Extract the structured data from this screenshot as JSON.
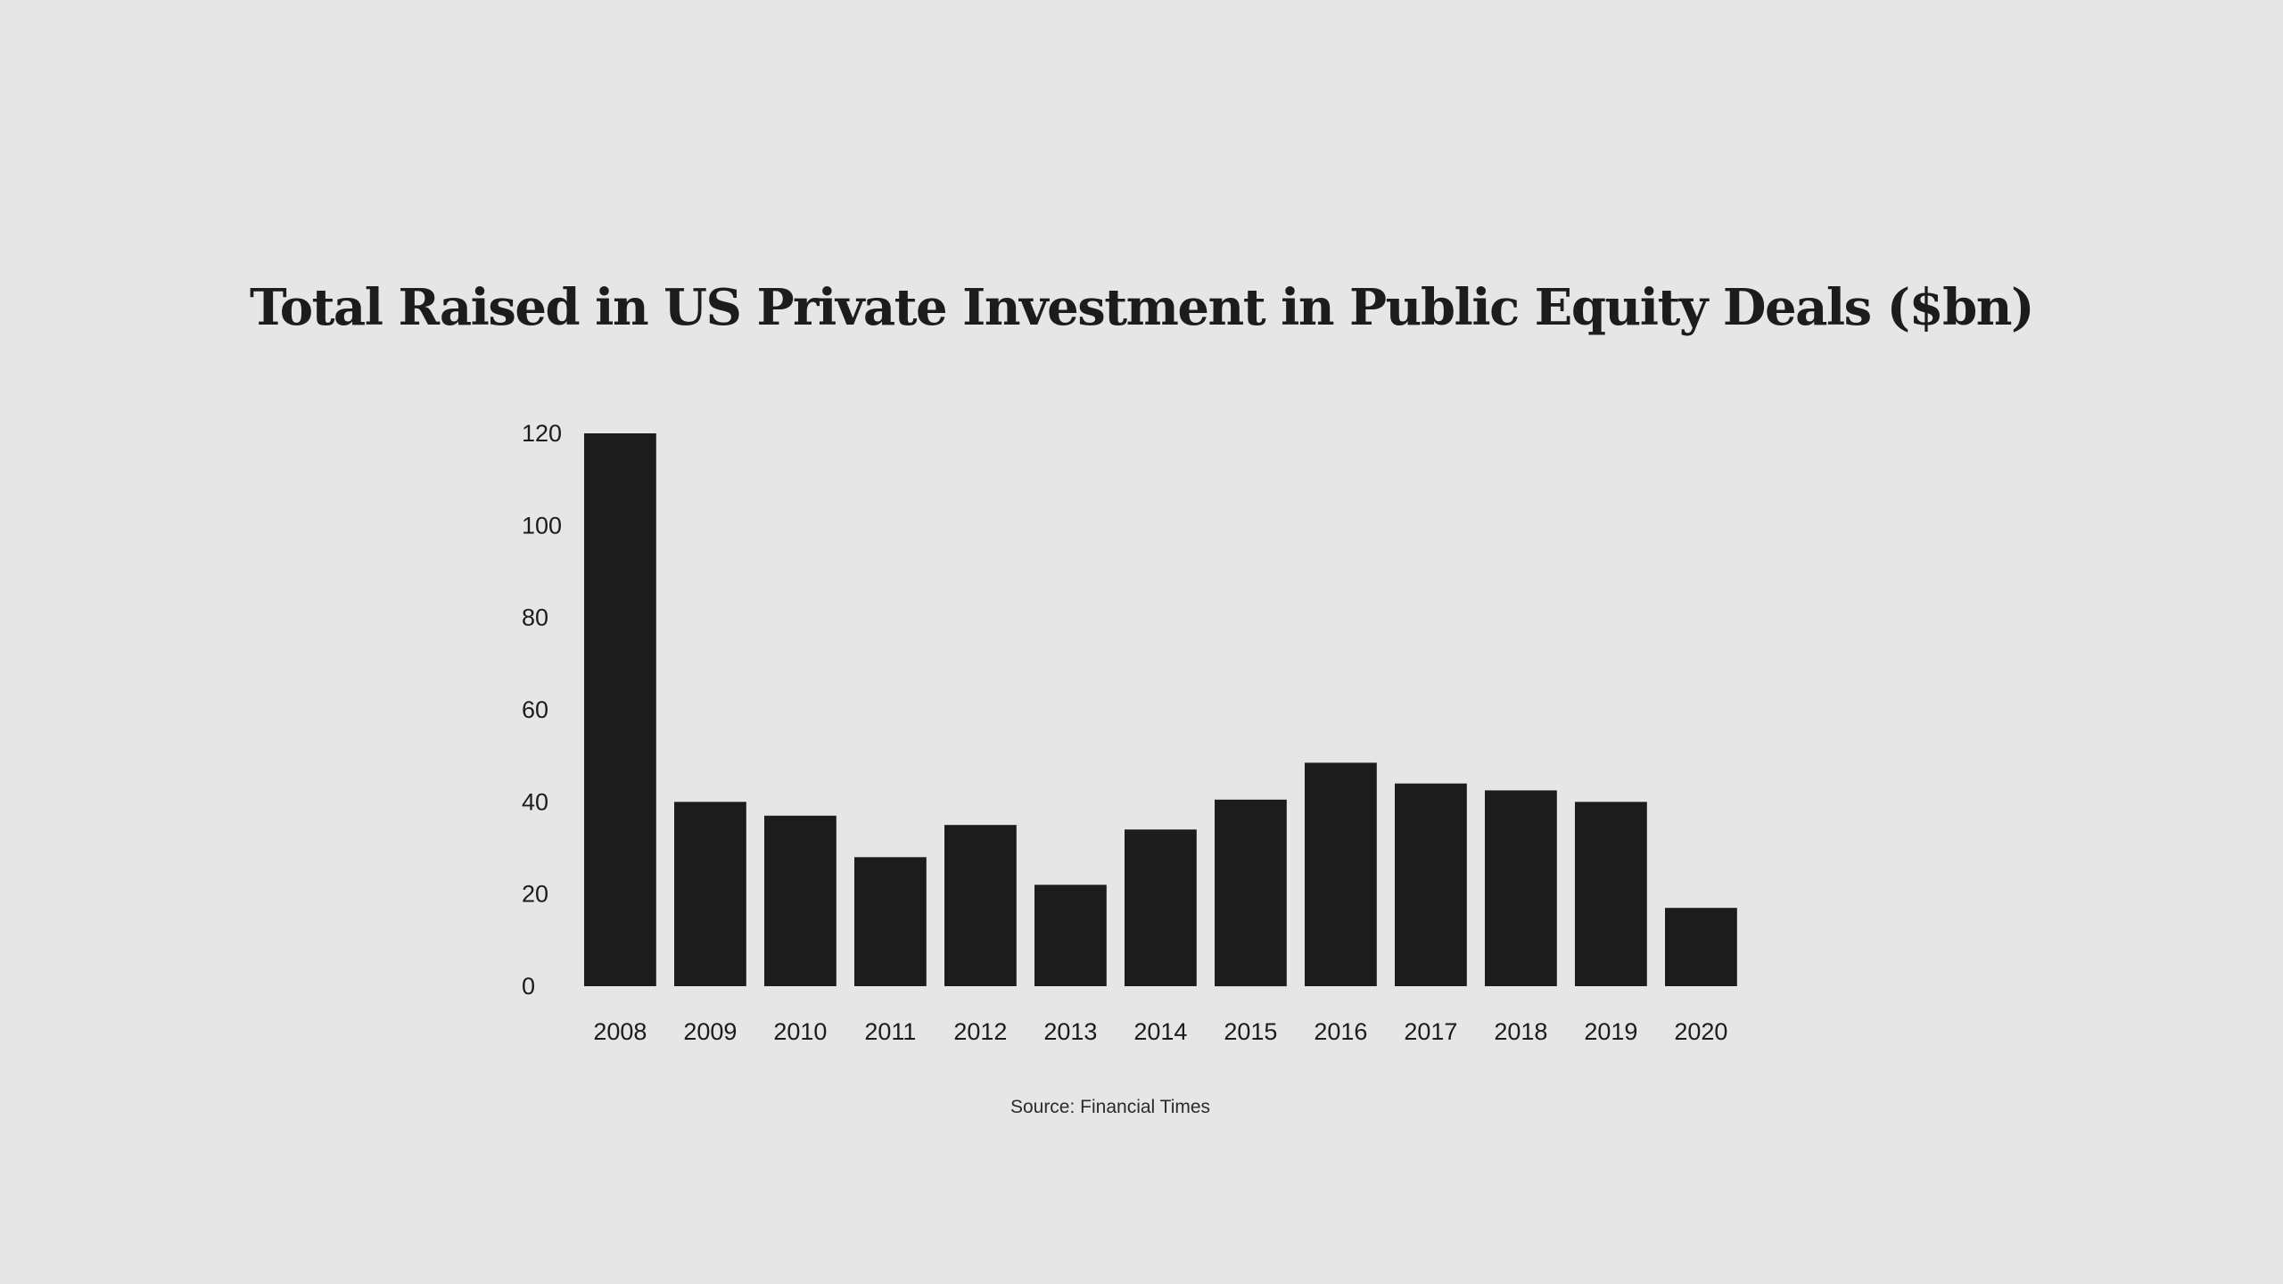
{
  "chart_data": {
    "type": "bar",
    "title": "Total Raised in US Private Investment in Public Equity Deals ($bn)",
    "categories": [
      "2008",
      "2009",
      "2010",
      "2011",
      "2012",
      "2013",
      "2014",
      "2015",
      "2016",
      "2017",
      "2018",
      "2019",
      "2020"
    ],
    "values": [
      120,
      40,
      37,
      28,
      35,
      22,
      34,
      40.5,
      48.5,
      44,
      42.5,
      40,
      17
    ],
    "y_ticks": [
      "0",
      "20",
      "40",
      "60",
      "80",
      "100",
      "120"
    ],
    "ylim": [
      0,
      120
    ],
    "xlabel": "",
    "ylabel": "",
    "grid": false,
    "legend": "none",
    "bar_color": "#1c1c1c",
    "background_color": "#e6e6e6"
  },
  "source": "Source: Financial Times"
}
